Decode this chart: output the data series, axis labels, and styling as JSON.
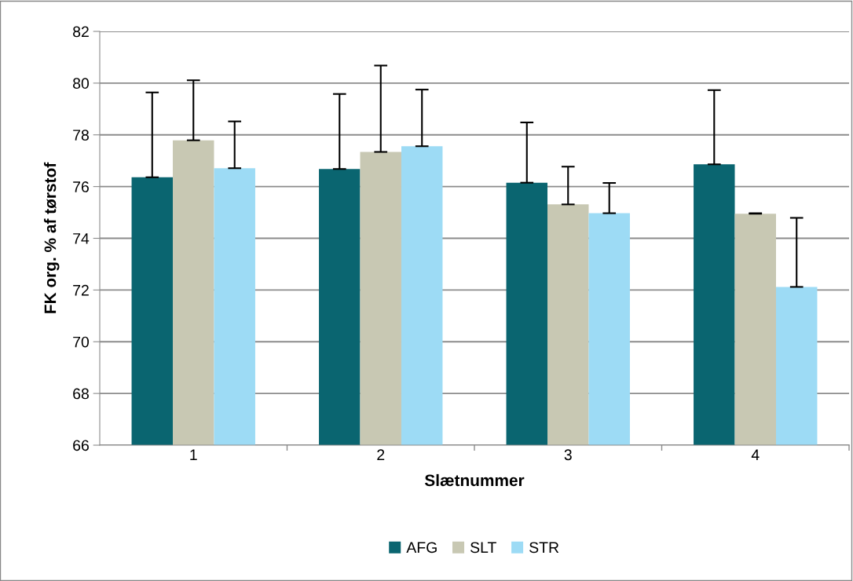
{
  "chart_data": {
    "type": "bar",
    "xlabel": "Slætnummer",
    "ylabel": "FK org. % af tørstof",
    "categories": [
      "1",
      "2",
      "3",
      "4"
    ],
    "series": [
      {
        "name": "AFG",
        "color": "#0a6570",
        "values": [
          76.36,
          76.68,
          76.15,
          76.86
        ],
        "errors": [
          3.28,
          2.9,
          2.33,
          2.87
        ]
      },
      {
        "name": "SLT",
        "color": "#c8c8b3",
        "values": [
          77.79,
          77.34,
          75.31,
          74.95
        ],
        "errors": [
          2.32,
          3.34,
          1.46,
          0.02
        ]
      },
      {
        "name": "STR",
        "color": "#9ddbf5",
        "values": [
          76.71,
          77.56,
          74.97,
          72.12
        ],
        "errors": [
          1.81,
          2.19,
          1.17,
          2.67
        ]
      }
    ],
    "ylim": [
      66,
      82
    ],
    "yticks": [
      66,
      68,
      70,
      72,
      74,
      76,
      78,
      80,
      82
    ],
    "grid": "y",
    "legend": "bottom"
  }
}
